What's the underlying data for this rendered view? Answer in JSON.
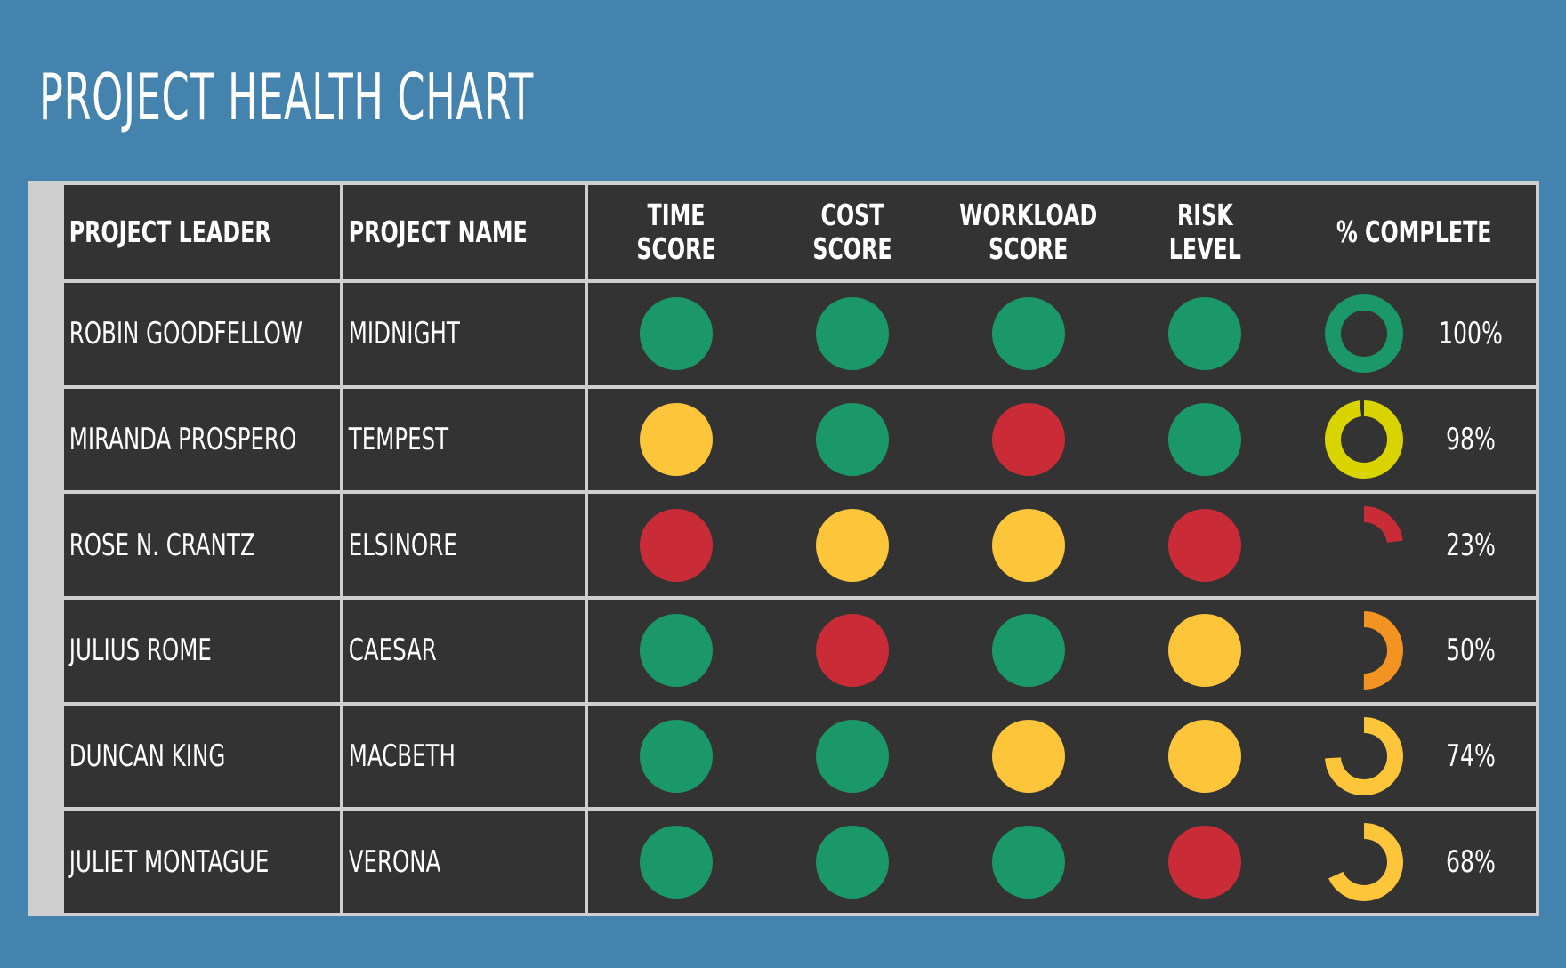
{
  "title": "PROJECT HEALTH CHART",
  "colors": {
    "green": "#1b986a",
    "yellow": "#fdc53a",
    "red": "#c92c37",
    "lime": "#d9d400",
    "orange": "#f29322",
    "cell_bg": "#333333",
    "page_bg": "#4383ad"
  },
  "headers": {
    "leader": "PROJECT LEADER",
    "project": "PROJECT NAME",
    "time": [
      "TIME",
      "SCORE"
    ],
    "cost": [
      "COST",
      "SCORE"
    ],
    "workload": [
      "WORKLOAD",
      "SCORE"
    ],
    "risk": [
      "RISK",
      "LEVEL"
    ],
    "complete": "% COMPLETE"
  },
  "chart_data": {
    "type": "table",
    "columns": [
      "PROJECT LEADER",
      "PROJECT NAME",
      "TIME SCORE",
      "COST SCORE",
      "WORKLOAD SCORE",
      "RISK LEVEL",
      "% COMPLETE"
    ],
    "rows": [
      {
        "leader": "ROBIN GOODFELLOW",
        "project": "MIDNIGHT",
        "time": "green",
        "cost": "green",
        "workload": "green",
        "risk": "green",
        "complete": 100,
        "complete_label": "100%",
        "donut_color": "green"
      },
      {
        "leader": "MIRANDA PROSPERO",
        "project": "TEMPEST",
        "time": "yellow",
        "cost": "green",
        "workload": "red",
        "risk": "green",
        "complete": 98,
        "complete_label": "98%",
        "donut_color": "lime"
      },
      {
        "leader": "ROSE N. CRANTZ",
        "project": "ELSINORE",
        "time": "red",
        "cost": "yellow",
        "workload": "yellow",
        "risk": "red",
        "complete": 23,
        "complete_label": "23%",
        "donut_color": "red"
      },
      {
        "leader": "JULIUS ROME",
        "project": "CAESAR",
        "time": "green",
        "cost": "red",
        "workload": "green",
        "risk": "yellow",
        "complete": 50,
        "complete_label": "50%",
        "donut_color": "orange"
      },
      {
        "leader": "DUNCAN KING",
        "project": "MACBETH",
        "time": "green",
        "cost": "green",
        "workload": "yellow",
        "risk": "yellow",
        "complete": 74,
        "complete_label": "74%",
        "donut_color": "yellow"
      },
      {
        "leader": "JULIET MONTAGUE",
        "project": "VERONA",
        "time": "green",
        "cost": "green",
        "workload": "green",
        "risk": "red",
        "complete": 68,
        "complete_label": "68%",
        "donut_color": "yellow"
      }
    ]
  }
}
